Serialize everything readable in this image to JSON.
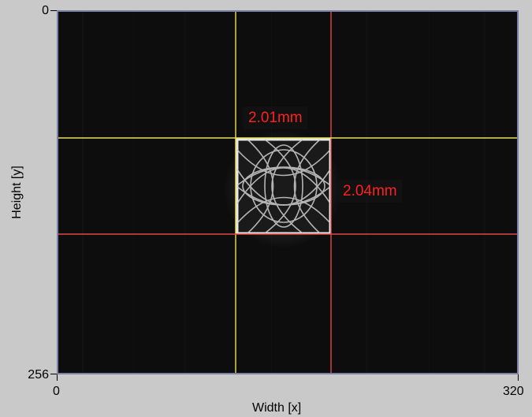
{
  "y_axis": {
    "title": "Height [y]",
    "tick_top": "0",
    "tick_bottom": "256",
    "range": [
      0,
      256
    ]
  },
  "x_axis": {
    "title": "Width [x]",
    "tick_left": "0",
    "tick_right": "320",
    "range": [
      0,
      320
    ]
  },
  "image": {
    "background_color": "#0d0d0d",
    "spot_description": "Bright lissajous square beam spot"
  },
  "cursors": {
    "vertical_left": {
      "color": "#e8e25a",
      "x": 126
    },
    "vertical_right": {
      "color": "#e04848",
      "x": 191
    },
    "horizontal_top": {
      "color": "#e8e25a",
      "y": 89
    },
    "horizontal_bottom": {
      "color": "#e04848",
      "y": 156
    }
  },
  "measurements": {
    "width_label": "2.01mm",
    "height_label": "2.04mm",
    "label_color": "#ff2020"
  }
}
